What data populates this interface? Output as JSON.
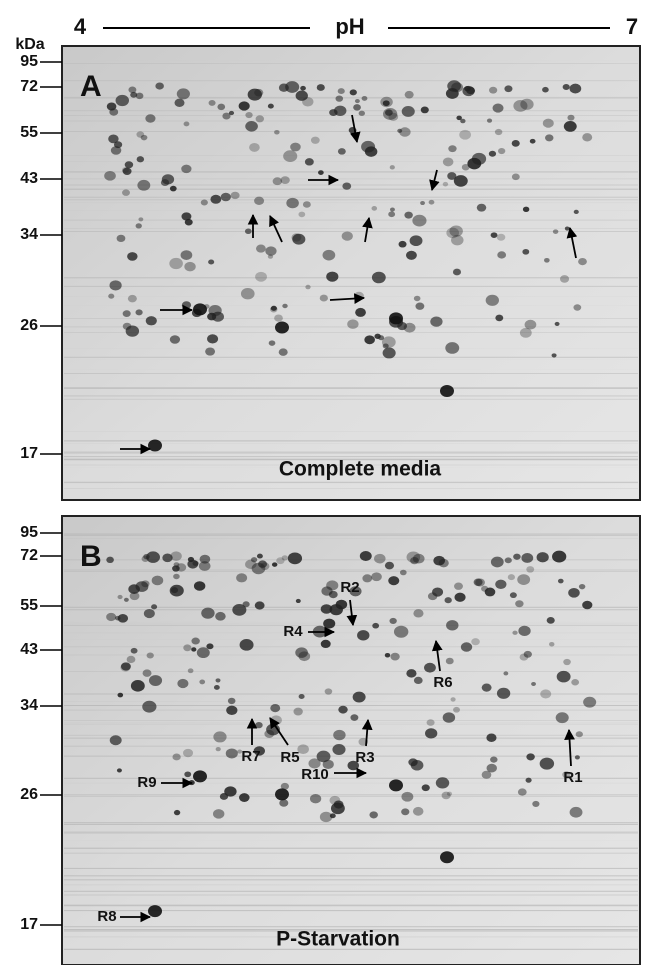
{
  "header": {
    "ph_low": "4",
    "ph_label": "pH",
    "ph_high": "7",
    "unit": "kDa"
  },
  "panels": [
    {
      "letter": "A",
      "caption": "Complete media",
      "markers": [
        "95",
        "72",
        "55",
        "43",
        "34",
        "26",
        "17"
      ]
    },
    {
      "letter": "B",
      "caption": "P-Starvation",
      "markers": [
        "95",
        "72",
        "55",
        "43",
        "34",
        "26",
        "17"
      ],
      "spot_labels": [
        "R1",
        "R2",
        "R3",
        "R4",
        "R5",
        "R6",
        "R7",
        "R8",
        "R9",
        "R10"
      ]
    }
  ]
}
